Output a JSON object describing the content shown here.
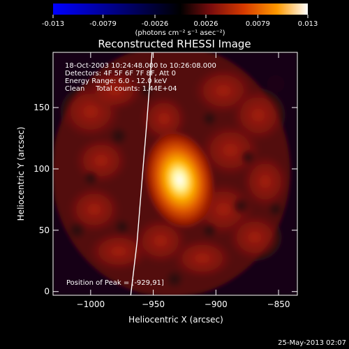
{
  "colorbar": {
    "tick_labels": [
      "-0.013",
      "-0.0079",
      "-0.0026",
      "0.0026",
      "0.0079",
      "0.013"
    ],
    "units_label": "(photons cm⁻² s⁻¹ asec⁻²)",
    "vmin": -0.013,
    "vmax": 0.013,
    "colors": [
      "#0000ff",
      "#000000",
      "#7a0d0d",
      "#d63a00",
      "#ff9a00",
      "#ffffff"
    ]
  },
  "chart_data": {
    "type": "heatmap",
    "title": "Reconstructed RHESSI Image",
    "xlabel": "Heliocentric X (arcsec)",
    "ylabel": "Heliocentric Y (arcsec)",
    "xlim": [
      -1030,
      -835
    ],
    "ylim": [
      -3,
      195
    ],
    "x_ticks": [
      -1000,
      -950,
      -900,
      -850
    ],
    "y_ticks": [
      0,
      50,
      100,
      150
    ],
    "x_tick_labels": [
      "−1000",
      "−950",
      "−900",
      "−850"
    ],
    "y_tick_labels": [
      "0",
      "50",
      "100",
      "150"
    ],
    "peak": {
      "x": -929,
      "y": 91,
      "value": 0.013
    },
    "limb_curve": [
      [
        -968,
        -3
      ],
      [
        -963,
        40
      ],
      [
        -959,
        90
      ],
      [
        -955,
        140
      ],
      [
        -951,
        195
      ]
    ],
    "annotations": {
      "line1": "18-Oct-2003 10:24:48.000 to 10:26:08.000",
      "line2": "Detectors: 4F 5F 6F 7F 8F, Att 0",
      "line3": "Energy Range: 6.0 - 12.0 keV",
      "line4": "Clean     Total counts: 1.44E+04",
      "peak_label": "Position of Peak = [-929,91]"
    }
  },
  "footer": {
    "date": "25-May-2013 02:07"
  }
}
